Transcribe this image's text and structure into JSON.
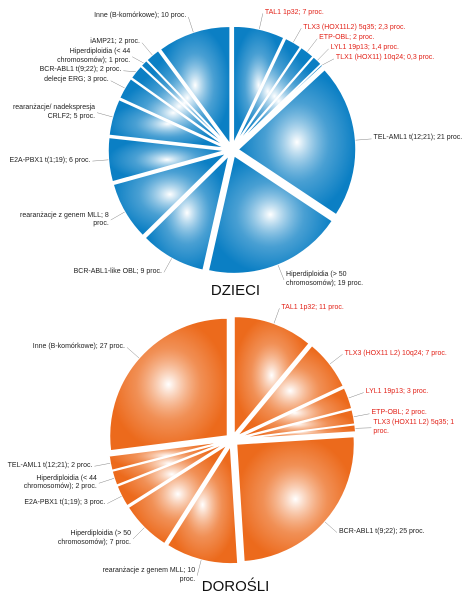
{
  "chart_data": [
    {
      "type": "pie",
      "title": "DZIECI",
      "color": "#0b7fc4",
      "categories": [
        "TAL1 1p32;",
        "TLX3 (HOX11L2) 5q35;",
        "ETP-OBL;",
        "LYL1 19p13;",
        "TLX1 (HOX11) 10q24;",
        "TEL-AML1 t(12;21);",
        "Hiperdiploidia (> 50 chromosomów);",
        "BCR-ABL1-like OBL;",
        "rearanżacje z genem MLL;",
        "E2A-PBX1 t(1;19);",
        "rearanżacje/ nadekspresja CRLF2;",
        "delecje ERG;",
        "BCR-ABL1 t(9;22);",
        "Hiperdiploidia (< 44 chromosomów);",
        "iAMP21;",
        "Inne (B-komórkowe);"
      ],
      "values": [
        7,
        2.3,
        2,
        1.4,
        0.3,
        21,
        19,
        9,
        8,
        6,
        5,
        3,
        2,
        1,
        2,
        10
      ],
      "value_labels": [
        "7 proc.",
        "2,3 proc.",
        "2 proc.",
        "1,4 proc.",
        "0,3 proc.",
        "21 proc.",
        "19 proc.",
        "9 proc.",
        "8 proc.",
        "6 proc.",
        "5 proc.",
        "3 proc.",
        "2 proc.",
        "1 proc.",
        "2 proc.",
        "10 proc."
      ],
      "label_colors": [
        "#e2231a",
        "#e2231a",
        "#e2231a",
        "#e2231a",
        "#e2231a",
        "#222",
        "#222",
        "#222",
        "#222",
        "#222",
        "#222",
        "#222",
        "#222",
        "#222",
        "#222",
        "#222"
      ]
    },
    {
      "type": "pie",
      "title": "DOROŚLI",
      "color": "#ec6a1c",
      "categories": [
        "TAL1 1p32;",
        "TLX3 (HOX11 L2) 10q24;",
        "LYL1 19p13;",
        "ETP-OBL;",
        "TLX3 (HOX11 L2) 5q35;",
        "BCR-ABL1 t(9;22);",
        "rearanżacje z genem MLL;",
        "Hiperdiploidia (> 50 chromosomów);",
        "E2A-PBX1 t(1;19);",
        "Hiperdiploidia (< 44 chromosomów);",
        "TEL-AML1 t(12;21);",
        "Inne (B-komórkowe);"
      ],
      "values": [
        11,
        7,
        3,
        2,
        1,
        25,
        10,
        7,
        3,
        2,
        2,
        27
      ],
      "value_labels": [
        "11 proc.",
        "7 proc.",
        "3 proc.",
        "2 proc.",
        "1 proc.",
        "25 proc.",
        "10 proc.",
        "7 proc.",
        "3 proc.",
        "2 proc.",
        "2 proc.",
        "27 proc."
      ],
      "label_colors": [
        "#e2231a",
        "#e2231a",
        "#e2231a",
        "#e2231a",
        "#e2231a",
        "#222",
        "#222",
        "#222",
        "#222",
        "#222",
        "#222",
        "#222"
      ]
    }
  ]
}
